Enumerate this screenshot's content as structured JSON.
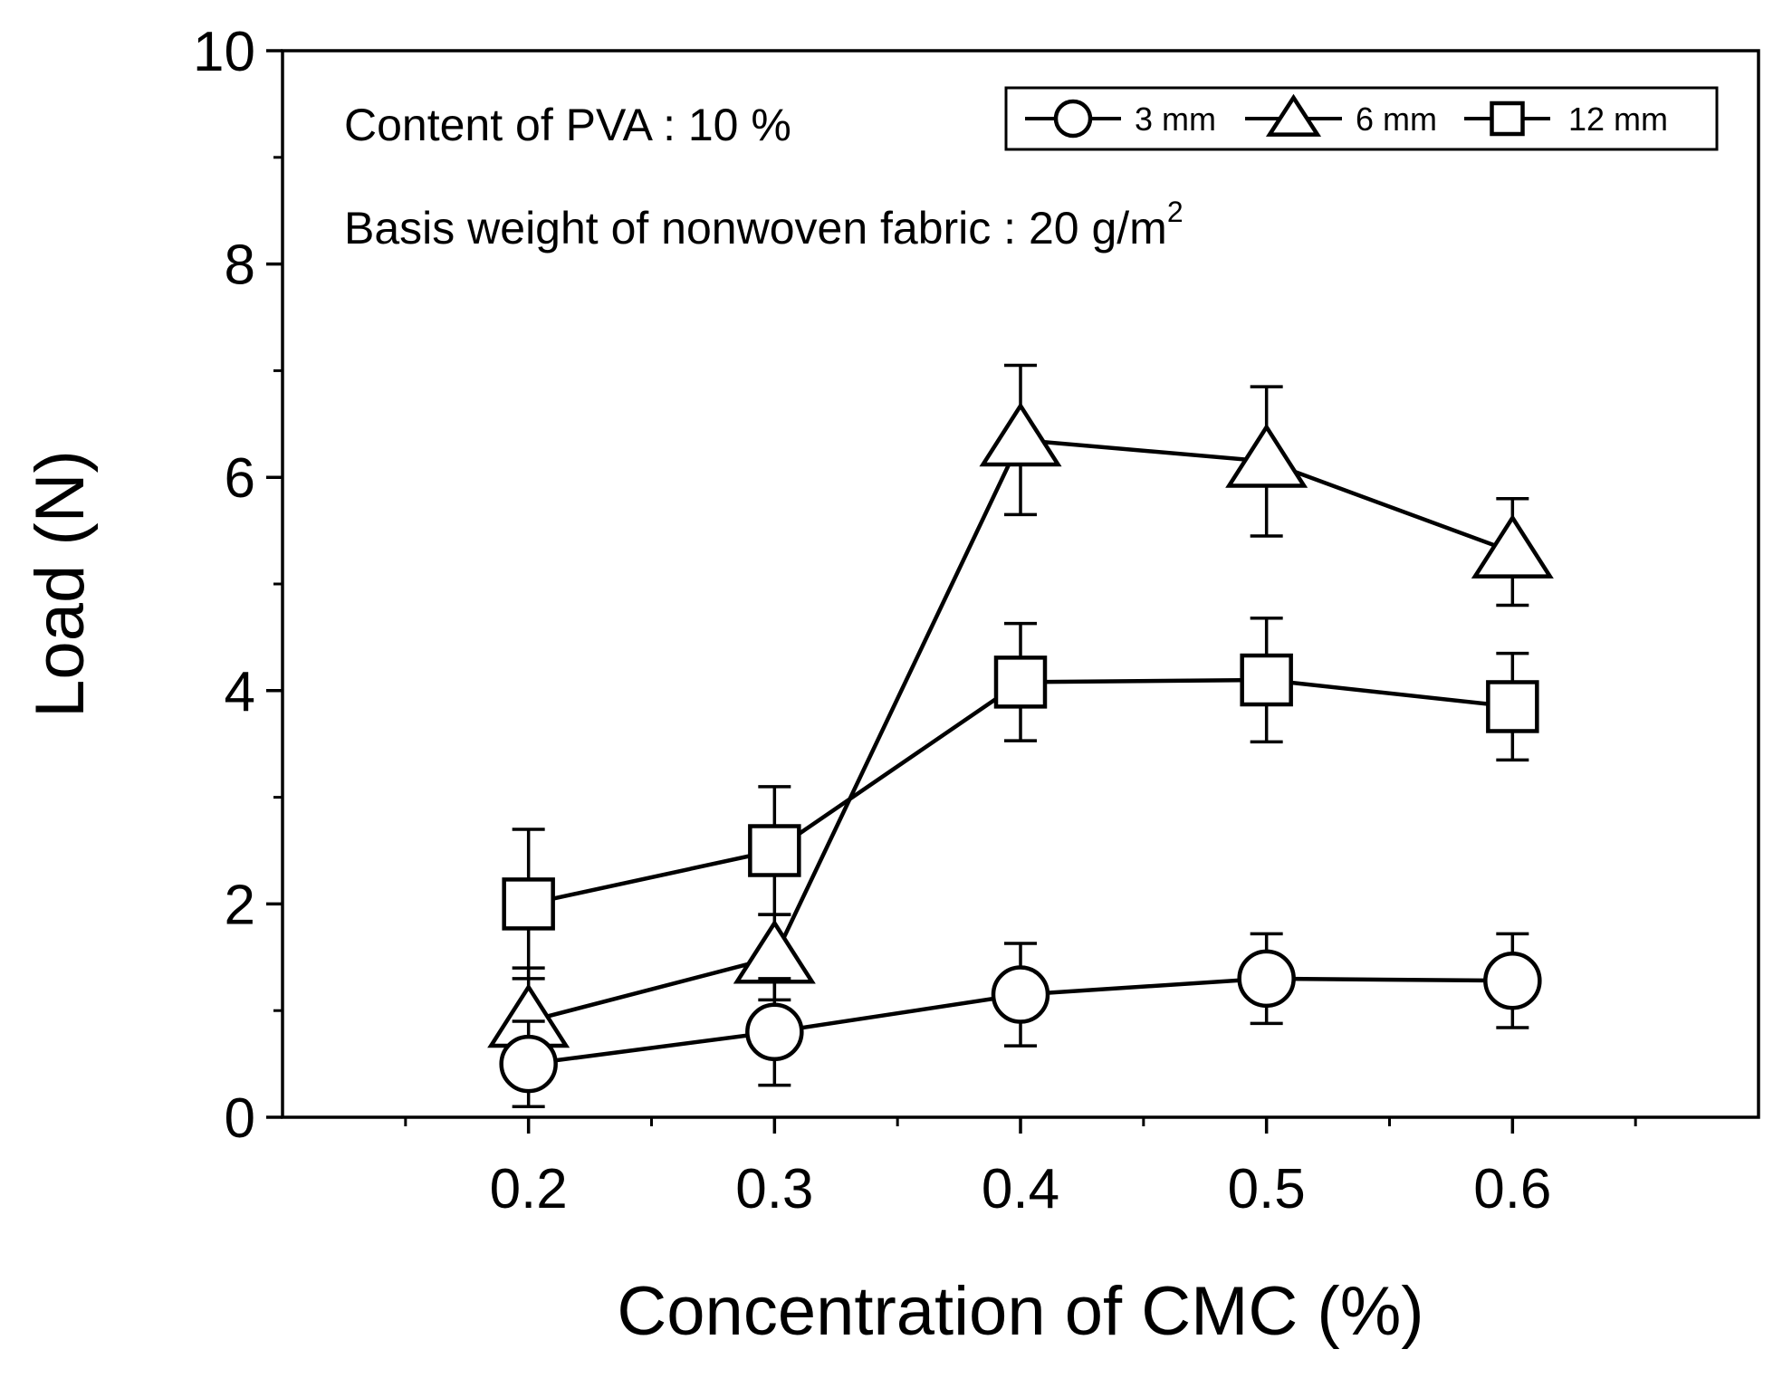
{
  "chart_data": {
    "type": "line",
    "title": "",
    "xlabel": "Concentration of CMC (%)",
    "ylabel": "Load (N)",
    "x": [
      0.2,
      0.3,
      0.4,
      0.5,
      0.6
    ],
    "x_tick_labels": [
      "0.2",
      "0.3",
      "0.4",
      "0.5",
      "0.6"
    ],
    "xlim": [
      0.1,
      0.7
    ],
    "ylim": [
      0,
      10
    ],
    "y_ticks": [
      0,
      2,
      4,
      6,
      8,
      10
    ],
    "y_tick_labels": [
      "0",
      "2",
      "4",
      "6",
      "8",
      "10"
    ],
    "grid": false,
    "legend_position": "top-right",
    "annotations": {
      "line1": "Content of PVA : 10 %",
      "line2_prefix": "Basis weight of nonwoven fabric : 20 g/m",
      "line2_sup": "2"
    },
    "series": [
      {
        "name": "3 mm",
        "marker": "circle",
        "values": [
          0.5,
          0.8,
          1.15,
          1.3,
          1.28
        ],
        "errors": [
          0.4,
          0.5,
          0.48,
          0.42,
          0.44
        ]
      },
      {
        "name": "6 mm",
        "marker": "triangle",
        "values": [
          0.9,
          1.5,
          6.35,
          6.15,
          5.3
        ],
        "errors": [
          0.5,
          0.4,
          0.7,
          0.7,
          0.5
        ]
      },
      {
        "name": "12 mm",
        "marker": "square",
        "values": [
          2.0,
          2.5,
          4.08,
          4.1,
          3.85
        ],
        "errors": [
          0.7,
          0.6,
          0.55,
          0.58,
          0.5
        ]
      }
    ]
  }
}
